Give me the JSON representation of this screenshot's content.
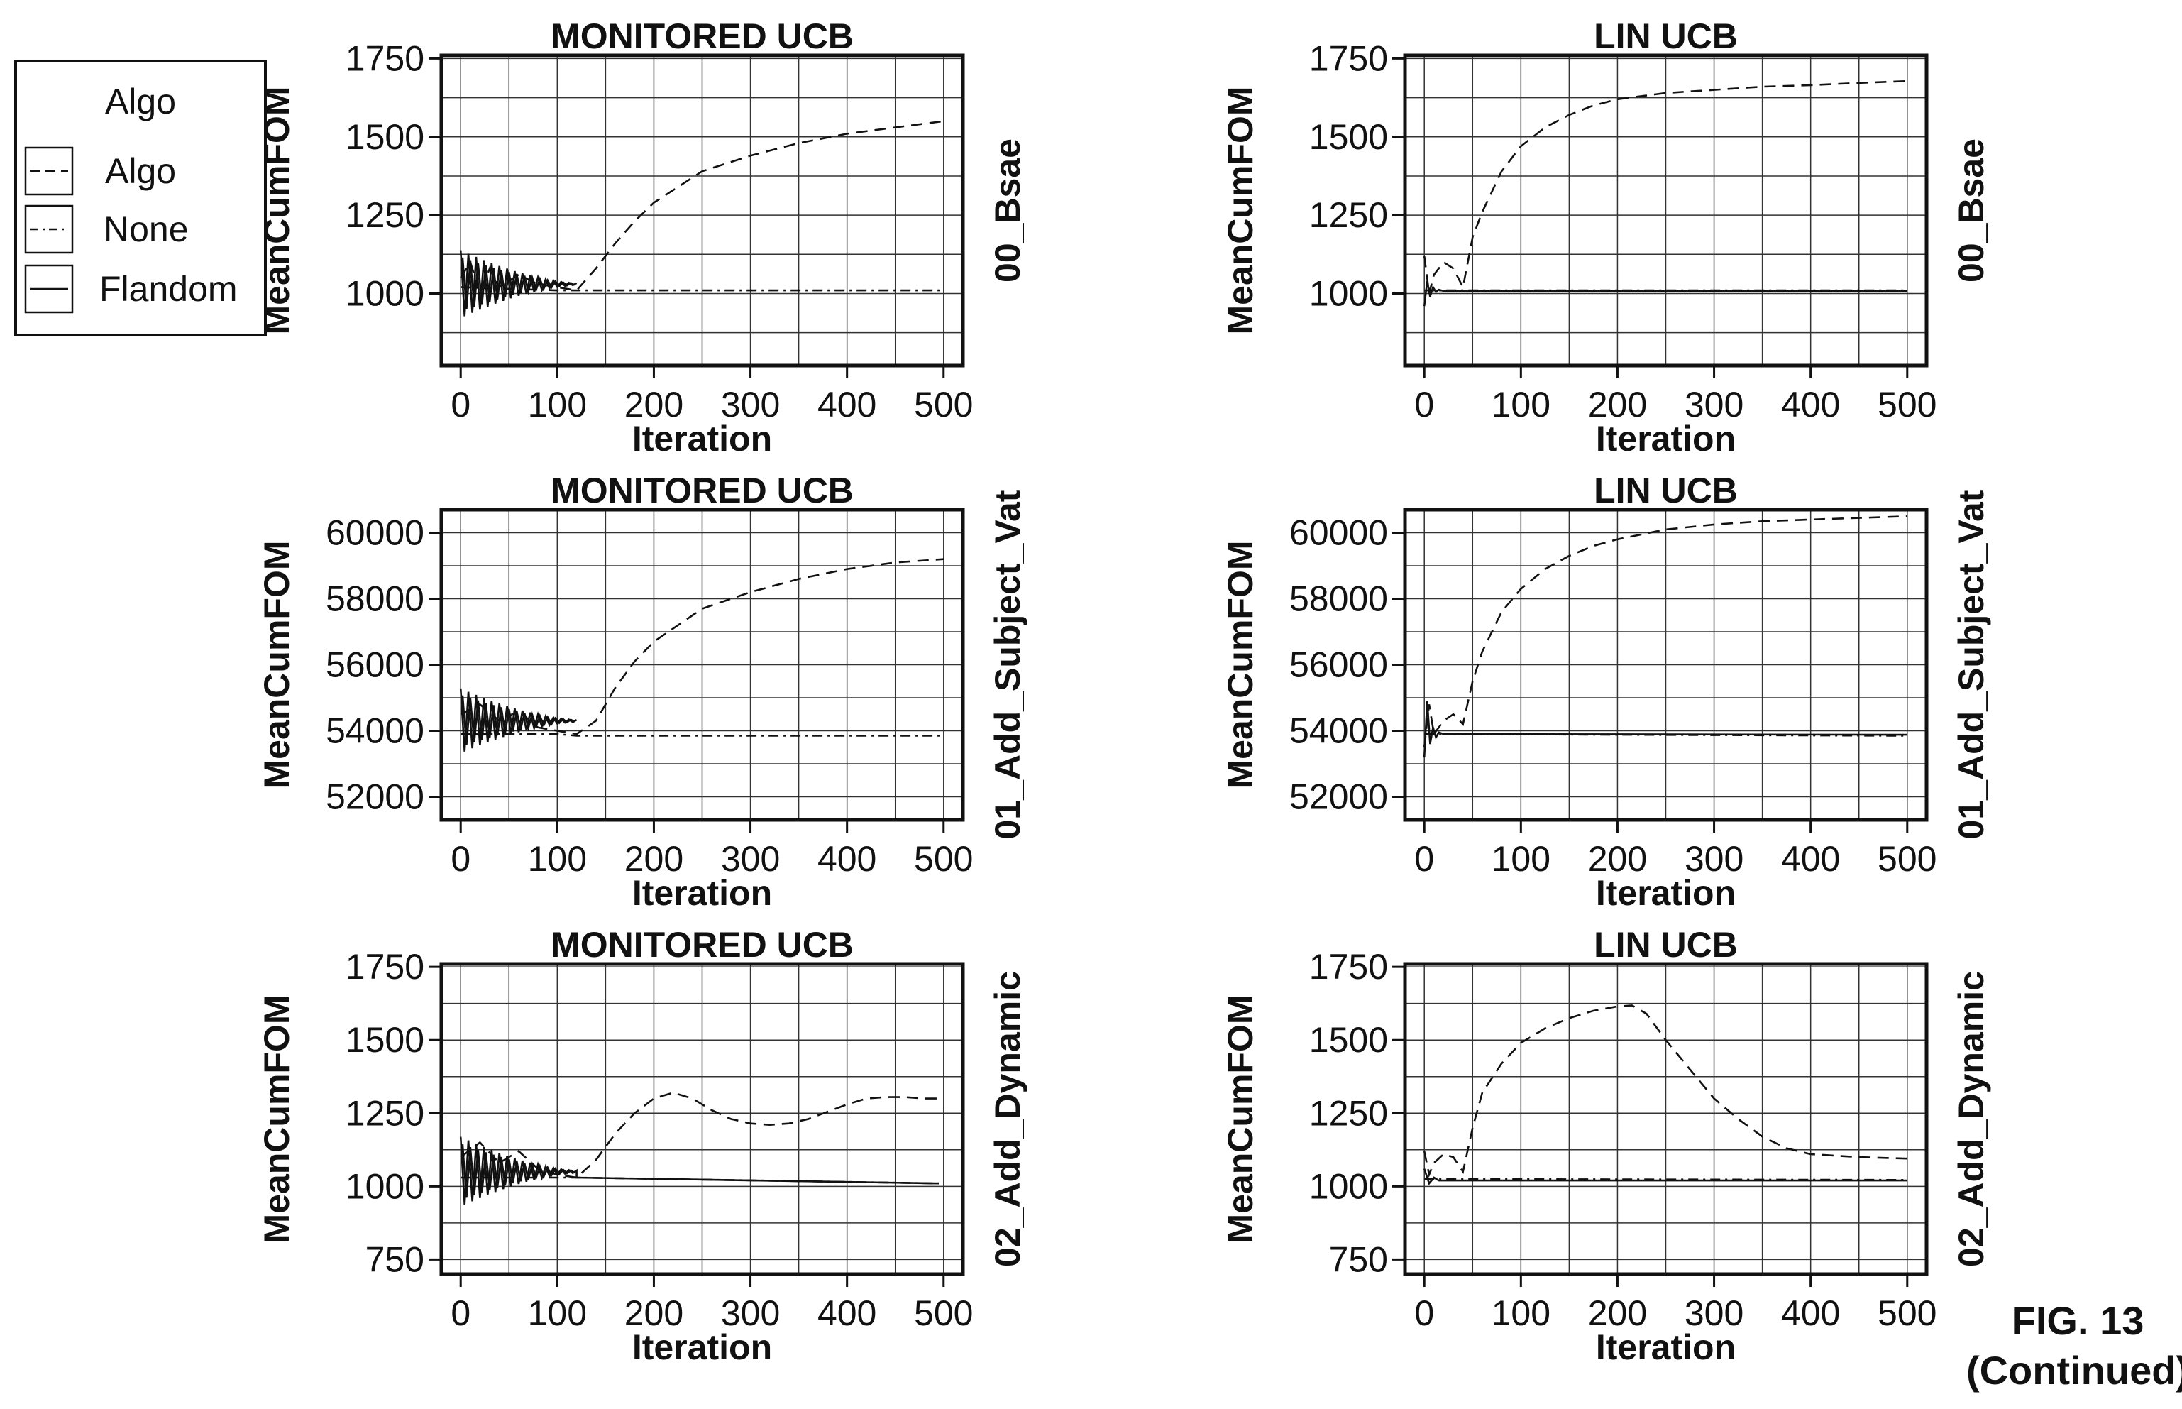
{
  "figure": {
    "label": "FIG. 13",
    "sublabel": "(Continued)"
  },
  "legend": {
    "title": "Algo",
    "items": [
      {
        "label": "Algo",
        "dash": "long-dash"
      },
      {
        "label": "None",
        "dash": "dash-dot"
      },
      {
        "label": "Flandom",
        "dash": "solid"
      }
    ]
  },
  "chart_data": [
    {
      "type": "line",
      "title": "MONITORED UCB",
      "xlabel": "Iteration",
      "ylabel": "MeanCumFOM",
      "strip": "00_Bsae",
      "row": 0,
      "col": 0,
      "xlim": [
        -20,
        520
      ],
      "ylim": [
        770,
        1760
      ],
      "xticks": [
        0,
        100,
        200,
        300,
        400,
        500
      ],
      "yticks": [
        1000,
        1250,
        1500,
        1750
      ],
      "grid": true,
      "series": [
        {
          "dash": "long-dash",
          "x": [
            0,
            10,
            20,
            30,
            40,
            60,
            80,
            100,
            120,
            140,
            160,
            180,
            200,
            250,
            300,
            350,
            400,
            450,
            500
          ],
          "y": [
            1050,
            1100,
            1000,
            1080,
            1020,
            1060,
            1030,
            1020,
            1010,
            1080,
            1160,
            1230,
            1290,
            1390,
            1440,
            1480,
            1510,
            1530,
            1550
          ]
        },
        {
          "dash": "dash-dot",
          "x": [
            0,
            100,
            120,
            500
          ],
          "y": [
            1020,
            1010,
            1010,
            1010
          ]
        },
        {
          "dash": "solid",
          "osc": {
            "x0": 0,
            "x1": 120,
            "center": 1030,
            "amp0": 210,
            "amp1": 6,
            "period": 8
          }
        }
      ]
    },
    {
      "type": "line",
      "title": "LIN UCB",
      "xlabel": "Iteration",
      "ylabel": "MeanCumFOM",
      "strip": "00_Bsae",
      "row": 0,
      "col": 1,
      "xlim": [
        -20,
        520
      ],
      "ylim": [
        770,
        1760
      ],
      "xticks": [
        0,
        100,
        200,
        300,
        400,
        500
      ],
      "yticks": [
        1000,
        1250,
        1500,
        1750
      ],
      "grid": true,
      "series": [
        {
          "dash": "long-dash",
          "x": [
            0,
            5,
            10,
            20,
            30,
            40,
            50,
            60,
            80,
            100,
            125,
            150,
            175,
            200,
            250,
            300,
            350,
            400,
            450,
            500
          ],
          "y": [
            1120,
            1000,
            1060,
            1100,
            1080,
            1020,
            1180,
            1260,
            1390,
            1470,
            1530,
            1570,
            1600,
            1620,
            1640,
            1650,
            1660,
            1665,
            1672,
            1678
          ]
        },
        {
          "dash": "dash-dot",
          "x": [
            0,
            500
          ],
          "y": [
            1010,
            1010
          ]
        },
        {
          "dash": "solid",
          "x": [
            0,
            3,
            6,
            9,
            12,
            15,
            20,
            500
          ],
          "y": [
            960,
            1040,
            990,
            1020,
            1005,
            1012,
            1008,
            1008
          ]
        }
      ]
    },
    {
      "type": "line",
      "title": "MONITORED UCB",
      "xlabel": "Iteration",
      "ylabel": "MeanCumFOM",
      "strip": "01_Add_Subject_Vat",
      "row": 1,
      "col": 0,
      "xlim": [
        -20,
        520
      ],
      "ylim": [
        51300,
        60700
      ],
      "xticks": [
        0,
        100,
        200,
        300,
        400,
        500
      ],
      "yticks": [
        52000,
        54000,
        56000,
        58000,
        60000
      ],
      "grid": true,
      "series": [
        {
          "dash": "long-dash",
          "x": [
            0,
            20,
            40,
            60,
            80,
            100,
            120,
            140,
            160,
            180,
            200,
            250,
            300,
            350,
            400,
            450,
            500
          ],
          "y": [
            54500,
            54800,
            54300,
            54600,
            54100,
            54000,
            53900,
            54300,
            55300,
            56100,
            56700,
            57700,
            58200,
            58600,
            58900,
            59100,
            59200
          ]
        },
        {
          "dash": "dash-dot",
          "x": [
            0,
            100,
            120,
            500
          ],
          "y": [
            53900,
            53900,
            53850,
            53850
          ]
        },
        {
          "dash": "solid",
          "osc": {
            "x0": 0,
            "x1": 120,
            "center": 54300,
            "amp0": 1900,
            "amp1": 60,
            "period": 8
          }
        }
      ]
    },
    {
      "type": "line",
      "title": "LIN UCB",
      "xlabel": "Iteration",
      "ylabel": "MeanCumFOM",
      "strip": "01_Add_Subject_Vat",
      "row": 1,
      "col": 1,
      "xlim": [
        -20,
        520
      ],
      "ylim": [
        51300,
        60700
      ],
      "xticks": [
        0,
        100,
        200,
        300,
        400,
        500
      ],
      "yticks": [
        52000,
        54000,
        56000,
        58000,
        60000
      ],
      "grid": true,
      "series": [
        {
          "dash": "long-dash",
          "x": [
            0,
            5,
            10,
            20,
            30,
            40,
            50,
            60,
            80,
            100,
            125,
            150,
            175,
            200,
            250,
            300,
            350,
            400,
            450,
            500
          ],
          "y": [
            53500,
            54800,
            53900,
            54300,
            54500,
            54200,
            55500,
            56400,
            57600,
            58300,
            58900,
            59300,
            59600,
            59800,
            60100,
            60250,
            60350,
            60400,
            60450,
            60500
          ]
        },
        {
          "dash": "dash-dot",
          "x": [
            0,
            500
          ],
          "y": [
            53900,
            53850
          ]
        },
        {
          "dash": "solid",
          "x": [
            0,
            3,
            6,
            9,
            12,
            15,
            20,
            500
          ],
          "y": [
            53200,
            54900,
            53600,
            54100,
            53800,
            53950,
            53900,
            53880
          ]
        }
      ]
    },
    {
      "type": "line",
      "title": "MONITORED UCB",
      "xlabel": "Iteration",
      "ylabel": "MeanCumFOM",
      "strip": "02_Add_Dynamic",
      "row": 2,
      "col": 0,
      "xlim": [
        -20,
        520
      ],
      "ylim": [
        700,
        1760
      ],
      "xticks": [
        0,
        100,
        200,
        300,
        400,
        500
      ],
      "yticks": [
        750,
        1000,
        1250,
        1500,
        1750
      ],
      "grid": true,
      "series": [
        {
          "dash": "long-dash",
          "x": [
            0,
            20,
            40,
            60,
            80,
            100,
            120,
            140,
            160,
            180,
            200,
            220,
            240,
            260,
            280,
            300,
            320,
            340,
            360,
            380,
            400,
            420,
            440,
            460,
            480,
            495
          ],
          "y": [
            1100,
            1150,
            1080,
            1120,
            1060,
            1040,
            1030,
            1090,
            1180,
            1250,
            1300,
            1320,
            1300,
            1260,
            1230,
            1215,
            1210,
            1215,
            1230,
            1255,
            1280,
            1300,
            1305,
            1305,
            1300,
            1300
          ]
        },
        {
          "dash": "dash-dot",
          "x": [
            0,
            120,
            495
          ],
          "y": [
            1030,
            1030,
            1010
          ]
        },
        {
          "dash": "solid",
          "osc": {
            "x0": 0,
            "x1": 120,
            "center": 1050,
            "amp0": 230,
            "amp1": 8,
            "period": 8
          },
          "x": [
            120,
            495
          ],
          "y": [
            1030,
            1010
          ]
        }
      ]
    },
    {
      "type": "line",
      "title": "LIN UCB",
      "xlabel": "Iteration",
      "ylabel": "MeanCumFOM",
      "strip": "02_Add_Dynamic",
      "row": 2,
      "col": 1,
      "xlim": [
        -20,
        520
      ],
      "ylim": [
        700,
        1760
      ],
      "xticks": [
        0,
        100,
        200,
        300,
        400,
        500
      ],
      "yticks": [
        750,
        1000,
        1250,
        1500,
        1750
      ],
      "grid": true,
      "series": [
        {
          "dash": "long-dash",
          "x": [
            0,
            5,
            10,
            20,
            30,
            40,
            50,
            60,
            80,
            100,
            125,
            150,
            175,
            200,
            215,
            230,
            250,
            275,
            300,
            325,
            350,
            375,
            400,
            450,
            500
          ],
          "y": [
            1120,
            1040,
            1080,
            1110,
            1100,
            1050,
            1200,
            1320,
            1420,
            1490,
            1540,
            1575,
            1600,
            1615,
            1618,
            1590,
            1500,
            1400,
            1300,
            1230,
            1170,
            1130,
            1110,
            1100,
            1095
          ]
        },
        {
          "dash": "dash-dot",
          "x": [
            0,
            500
          ],
          "y": [
            1025,
            1022
          ]
        },
        {
          "dash": "solid",
          "x": [
            0,
            5,
            10,
            15,
            20,
            500
          ],
          "y": [
            1060,
            1010,
            1030,
            1020,
            1020,
            1020
          ]
        }
      ]
    }
  ]
}
